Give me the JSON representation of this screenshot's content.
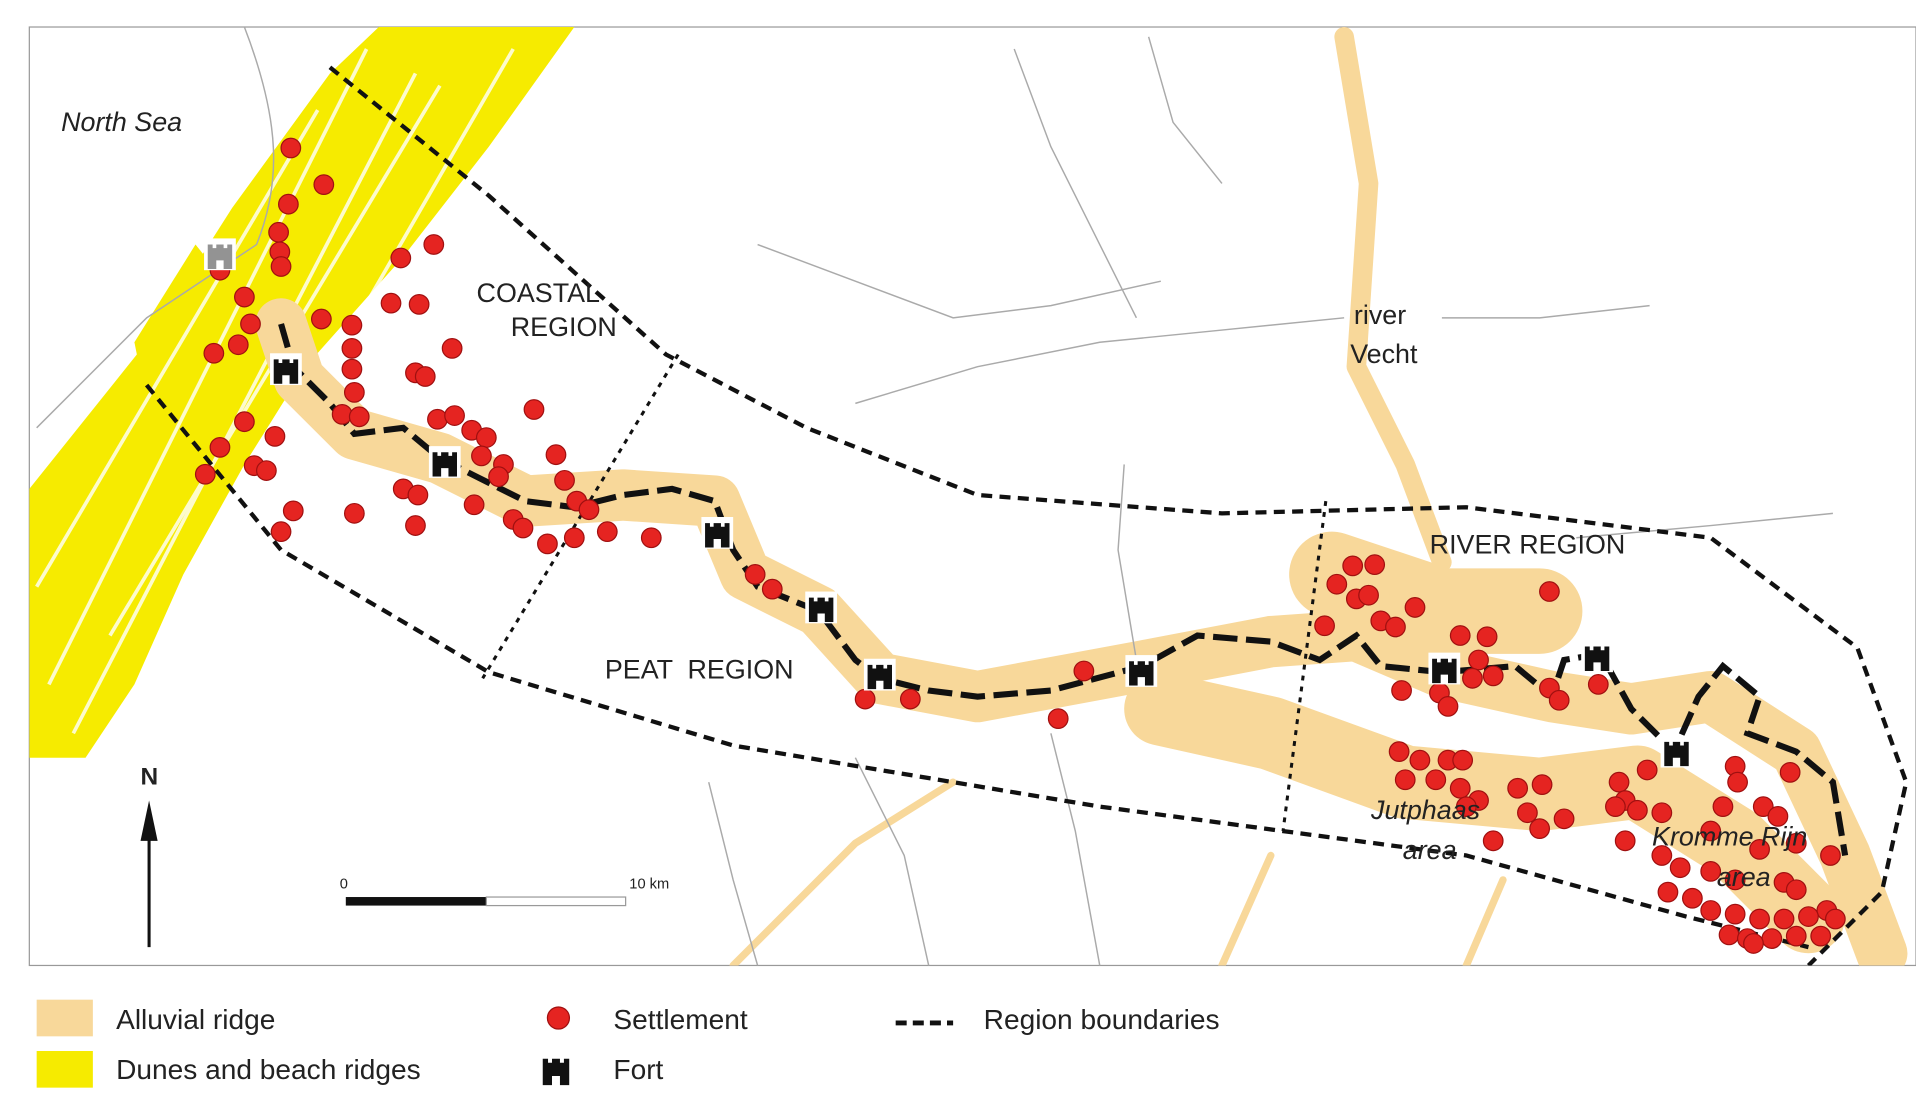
{
  "map": {
    "labels": {
      "north_sea": "North Sea",
      "coastal": "COASTAL",
      "coastal_region": "REGION",
      "peat": "PEAT  REGION",
      "river_region": "RIVER REGION",
      "river": "river",
      "vecht": "Vecht",
      "jutphaas": "Jutphaas",
      "jutphaas_area": "area",
      "kromme_rijn": "Kromme Rijn",
      "kromme_rijn_area": "area",
      "north": "N"
    },
    "scale_bar": {
      "start": "0",
      "end": "10 km"
    },
    "legend": {
      "alluvial": "Alluvial ridge",
      "dunes": "Dunes and beach ridges",
      "settlement": "Settlement",
      "fort": "Fort",
      "boundaries": "Region boundaries"
    }
  }
}
